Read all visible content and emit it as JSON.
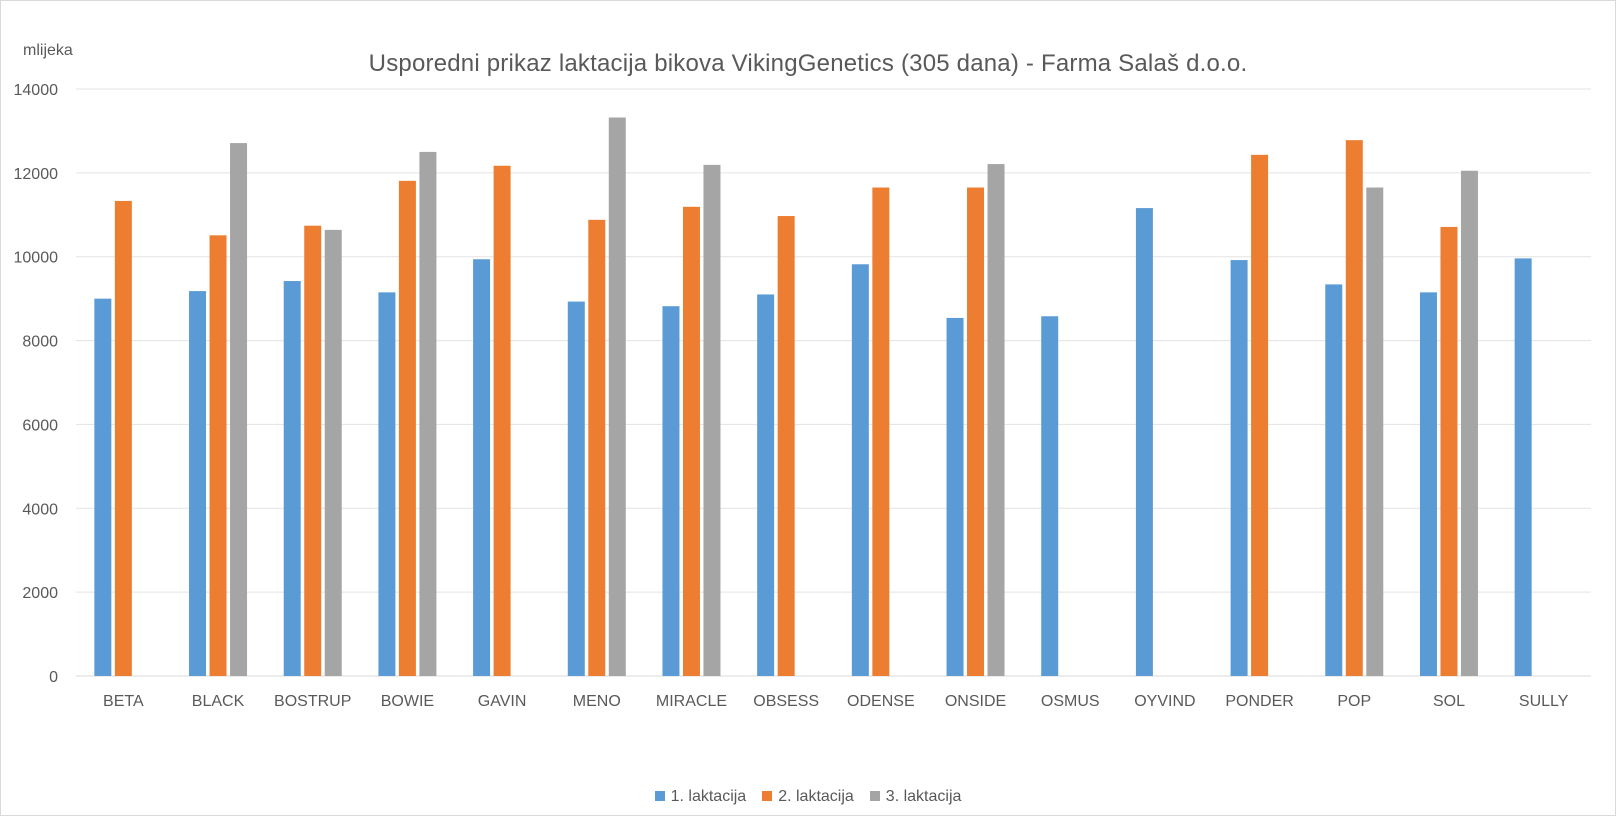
{
  "chart_data": {
    "type": "bar",
    "title": "Usporedni prikaz laktacija bikova VikingGenetics (305 dana) - Farma Salaš d.o.o.",
    "ylabel": "mlijeka",
    "xlabel": "",
    "ylim": [
      0,
      14000
    ],
    "yticks": [
      0,
      2000,
      4000,
      6000,
      8000,
      10000,
      12000,
      14000
    ],
    "ytick_labels": [
      "0",
      "2000",
      "4000",
      "6000",
      "8000",
      "10000",
      "12000",
      "14000"
    ],
    "grid": true,
    "legend_position": "bottom",
    "categories": [
      "BETA",
      "BLACK",
      "BOSTRUP",
      "BOWIE",
      "GAVIN",
      "MENO",
      "MIRACLE",
      "OBSESS",
      "ODENSE",
      "ONSIDE",
      "OSMUS",
      "OYVIND",
      "PONDER",
      "POP",
      "SOL",
      "SULLY"
    ],
    "series": [
      {
        "name": "1. laktacija",
        "color": "#5b9bd5",
        "values": [
          9000,
          9180,
          9420,
          9150,
          9940,
          8930,
          8820,
          9100,
          9820,
          8540,
          8580,
          11160,
          9920,
          9340,
          9150,
          9960
        ]
      },
      {
        "name": "2. laktacija",
        "color": "#ed7d31",
        "values": [
          11330,
          10510,
          10740,
          11810,
          12170,
          10880,
          11190,
          10970,
          11650,
          11650,
          null,
          null,
          12430,
          12780,
          10710,
          null
        ]
      },
      {
        "name": "3. laktacija",
        "color": "#a5a5a5",
        "values": [
          null,
          12710,
          10640,
          12500,
          null,
          13320,
          12190,
          null,
          null,
          12210,
          null,
          null,
          null,
          11650,
          12050,
          null
        ]
      }
    ]
  }
}
